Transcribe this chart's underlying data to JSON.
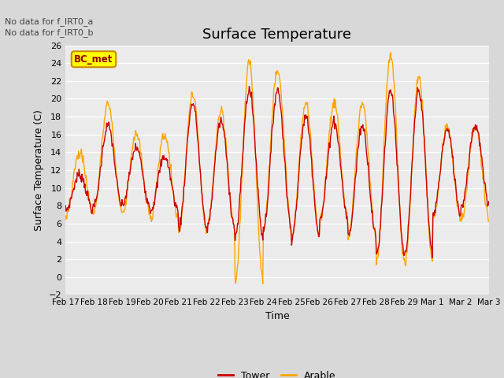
{
  "title": "Surface Temperature",
  "xlabel": "Time",
  "ylabel": "Surface Temperature (C)",
  "ylim": [
    -2,
    26
  ],
  "yticks": [
    -2,
    0,
    2,
    4,
    6,
    8,
    10,
    12,
    14,
    16,
    18,
    20,
    22,
    24,
    26
  ],
  "tower_color": "#cc0000",
  "arable_color": "#ffa500",
  "bc_met_color": "#ffff00",
  "bc_met_border": "#cc8800",
  "figure_background": "#d8d8d8",
  "plot_background": "#ebebeb",
  "no_data_text_1": "No data for f_IRT0_a",
  "no_data_text_2": "No data for f_IRT0_b",
  "bc_met_label": "BC_met",
  "legend_tower": "Tower",
  "legend_arable": "Arable",
  "date_labels": [
    "Feb 17",
    "Feb 18",
    "Feb 19",
    "Feb 20",
    "Feb 21",
    "Feb 22",
    "Feb 23",
    "Feb 24",
    "Feb 25",
    "Feb 26",
    "Feb 27",
    "Feb 28",
    "Feb 29",
    "Mar 1",
    "Mar 2",
    "Mar 3"
  ],
  "n_days": 15,
  "tower_mins": [
    7.5,
    8.0,
    8.0,
    7.5,
    5.5,
    5.5,
    4.5,
    5.5,
    4.5,
    6.5,
    4.5,
    2.5,
    2.5,
    7.0,
    8.0
  ],
  "tower_maxs": [
    11.5,
    17.0,
    14.5,
    13.5,
    19.5,
    17.5,
    21.0,
    21.0,
    18.0,
    17.5,
    17.0,
    21.0,
    21.0,
    16.5,
    17.0
  ],
  "arable_mins": [
    7.0,
    7.5,
    7.0,
    6.5,
    5.0,
    5.5,
    -0.5,
    5.5,
    4.5,
    6.5,
    4.5,
    1.5,
    1.5,
    6.5,
    6.5
  ],
  "arable_maxs": [
    14.0,
    19.5,
    16.0,
    16.0,
    20.5,
    18.5,
    24.0,
    23.5,
    19.5,
    19.5,
    19.5,
    25.0,
    22.5,
    17.0,
    17.0
  ],
  "points_per_day": 48,
  "noise": 0.3,
  "seed": 7
}
